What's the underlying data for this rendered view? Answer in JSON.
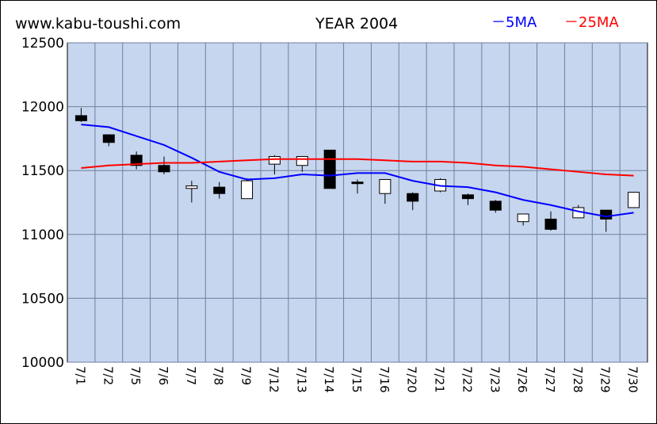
{
  "header": {
    "site": "www.kabu-toushi.com",
    "title": "YEAR 2004",
    "legend_5ma": "－5MA",
    "legend_25ma": "－25MA"
  },
  "colors": {
    "plot_bg": "#c6d6ee",
    "ma5": "#0000ff",
    "ma25": "#ff0000",
    "bear": "#000000",
    "bull": "#ffffff",
    "grid": "#6f7f9f"
  },
  "chart_data": {
    "type": "candlestick",
    "title": "YEAR 2004",
    "ylim": [
      10000,
      12500
    ],
    "yticks": [
      10000,
      10500,
      11000,
      11500,
      12000,
      12500
    ],
    "grid": true,
    "legend": "top-right",
    "categories": [
      "7/1",
      "7/2",
      "7/5",
      "7/6",
      "7/7",
      "7/8",
      "7/9",
      "7/12",
      "7/13",
      "7/14",
      "7/15",
      "7/16",
      "7/20",
      "7/21",
      "7/22",
      "7/23",
      "7/26",
      "7/27",
      "7/28",
      "7/29",
      "7/30"
    ],
    "ohlc": [
      {
        "open": 11930,
        "high": 11990,
        "low": 11880,
        "close": 11890
      },
      {
        "open": 11780,
        "high": 11780,
        "low": 11690,
        "close": 11720
      },
      {
        "open": 11620,
        "high": 11650,
        "low": 11510,
        "close": 11540
      },
      {
        "open": 11540,
        "high": 11610,
        "low": 11470,
        "close": 11490
      },
      {
        "open": 11360,
        "high": 11420,
        "low": 11250,
        "close": 11380
      },
      {
        "open": 11370,
        "high": 11410,
        "low": 11280,
        "close": 11320
      },
      {
        "open": 11280,
        "high": 11440,
        "low": 11280,
        "close": 11420
      },
      {
        "open": 11550,
        "high": 11620,
        "low": 11470,
        "close": 11610
      },
      {
        "open": 11540,
        "high": 11610,
        "low": 11490,
        "close": 11610
      },
      {
        "open": 11660,
        "high": 11660,
        "low": 11360,
        "close": 11360
      },
      {
        "open": 11410,
        "high": 11430,
        "low": 11320,
        "close": 11400
      },
      {
        "open": 11320,
        "high": 11430,
        "low": 11240,
        "close": 11430
      },
      {
        "open": 11320,
        "high": 11330,
        "low": 11190,
        "close": 11260
      },
      {
        "open": 11340,
        "high": 11440,
        "low": 11330,
        "close": 11430
      },
      {
        "open": 11310,
        "high": 11320,
        "low": 11230,
        "close": 11280
      },
      {
        "open": 11260,
        "high": 11270,
        "low": 11170,
        "close": 11190
      },
      {
        "open": 11100,
        "high": 11160,
        "low": 11070,
        "close": 11160
      },
      {
        "open": 11120,
        "high": 11180,
        "low": 11030,
        "close": 11040
      },
      {
        "open": 11130,
        "high": 11230,
        "low": 11130,
        "close": 11210
      },
      {
        "open": 11190,
        "high": 11190,
        "low": 11020,
        "close": 11120
      },
      {
        "open": 11210,
        "high": 11330,
        "low": 11210,
        "close": 11330
      }
    ],
    "series": [
      {
        "name": "5MA",
        "color": "#0000ff",
        "values": [
          11860,
          11840,
          11770,
          11700,
          11600,
          11490,
          11430,
          11440,
          11470,
          11460,
          11480,
          11480,
          11420,
          11380,
          11370,
          11330,
          11270,
          11230,
          11180,
          11140,
          11170
        ]
      },
      {
        "name": "25MA",
        "color": "#ff0000",
        "values": [
          11520,
          11540,
          11550,
          11560,
          11560,
          11570,
          11580,
          11590,
          11590,
          11590,
          11590,
          11580,
          11570,
          11570,
          11560,
          11540,
          11530,
          11510,
          11490,
          11470,
          11460
        ]
      }
    ]
  }
}
